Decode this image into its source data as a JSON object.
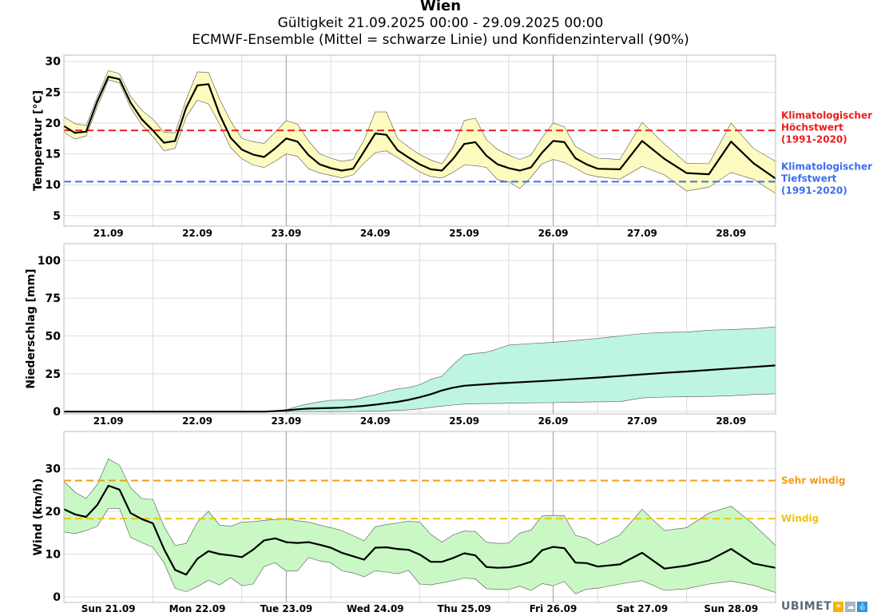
{
  "title": "Wien",
  "subtitle1": "Gültigkeit 21.09.2025 00:00 - 29.09.2025 00:00",
  "subtitle2": "ECMWF-Ensemble (Mittel = schwarze Linie) und Konfidenzintervall (90%)",
  "logo": {
    "text": "UBIMET",
    "icons": [
      "sun-icon",
      "cloud-icon",
      "drop-icon"
    ]
  },
  "colors": {
    "temp_band": "#fdfbbf",
    "precip_band": "#bdf5e2",
    "wind_band": "#c9f8c4",
    "tmax": "#ee1b1b",
    "tmin": "#3d6ef0",
    "sehr": "#f59a16",
    "windig": "#f1c411",
    "logo1": "#f3b200",
    "logo2": "#a7b6c4",
    "logo3": "#3a8fd6"
  },
  "chart_data": [
    {
      "type": "line",
      "name": "temperature",
      "ylabel": "Temperatur [°C]",
      "ylim": [
        3.3,
        31
      ],
      "yticks": [
        5,
        10,
        15,
        20,
        25,
        30
      ],
      "xlim": [
        0,
        8
      ],
      "xtick_labels": [
        "21.09",
        "22.09",
        "23.09",
        "24.09",
        "25.09",
        "26.09",
        "27.09",
        "28.09"
      ],
      "hourly_vgrid": [
        0,
        0.5,
        1,
        2,
        3,
        4,
        5,
        6,
        7,
        8
      ],
      "x": [
        0,
        0.125,
        0.25,
        0.375,
        0.5,
        0.625,
        0.75,
        0.875,
        1,
        1.125,
        1.25,
        1.375,
        1.5,
        1.625,
        1.75,
        1.875,
        2,
        2.125,
        2.25,
        2.375,
        2.5,
        2.625,
        2.75,
        2.875,
        3,
        3.125,
        3.25,
        3.375,
        3.5,
        3.625,
        3.75,
        3.875,
        4,
        4.125,
        4.25,
        4.375,
        4.5,
        4.625,
        4.75,
        4.875,
        5,
        5.125,
        5.25,
        5.375,
        5.5,
        5.625,
        5.75,
        5.875,
        6,
        6.25,
        6.5,
        6.75,
        7,
        7.25,
        7.5,
        7.75,
        8
      ],
      "mean": [
        19.5,
        18.4,
        18.6,
        23.5,
        27.5,
        27.1,
        23.3,
        20.6,
        18.8,
        16.8,
        17.1,
        22.5,
        26.1,
        26.3,
        21.4,
        17.6,
        15.7,
        14.9,
        14.5,
        15.9,
        17.5,
        17.0,
        14.8,
        13.3,
        12.7,
        12.3,
        12.6,
        15.4,
        18.3,
        18.1,
        15.6,
        14.4,
        13.3,
        12.5,
        12.3,
        14.2,
        16.6,
        16.9,
        14.7,
        13.3,
        12.7,
        12.3,
        12.8,
        15.2,
        17.1,
        16.9,
        14.3,
        13.3,
        12.6,
        12.5,
        17.1,
        14.2,
        11.9,
        11.7,
        17.0,
        13.5,
        11.0
      ],
      "upper": [
        21.0,
        19.9,
        19.6,
        24.2,
        28.5,
        28.0,
        24.3,
        22.1,
        20.6,
        18.5,
        18.4,
        23.8,
        28.3,
        28.2,
        23.9,
        20.3,
        17.5,
        17.0,
        16.7,
        18.5,
        20.4,
        19.8,
        17.1,
        15.0,
        14.3,
        13.8,
        14.1,
        17.3,
        21.8,
        21.8,
        17.5,
        16.1,
        14.9,
        14.0,
        13.4,
        16.0,
        20.4,
        20.8,
        17.3,
        15.7,
        14.8,
        14.1,
        14.8,
        17.6,
        20.0,
        19.4,
        16.2,
        15.2,
        14.3,
        14.1,
        20.1,
        16.6,
        13.5,
        13.4,
        20.0,
        15.9,
        13.8
      ],
      "lower": [
        18.5,
        17.4,
        17.9,
        22.6,
        27.0,
        26.5,
        22.5,
        19.7,
        17.8,
        15.5,
        15.9,
        21.0,
        23.7,
        23.1,
        19.8,
        16.0,
        14.2,
        13.2,
        12.8,
        13.8,
        15.0,
        14.6,
        12.6,
        11.9,
        11.5,
        11.1,
        11.6,
        13.5,
        15.2,
        15.5,
        14.4,
        13.2,
        12.1,
        11.3,
        11.1,
        12.0,
        13.2,
        13.1,
        12.8,
        10.8,
        10.5,
        9.4,
        11.2,
        13.4,
        14.1,
        13.6,
        12.7,
        11.7,
        11.3,
        10.9,
        13.0,
        11.6,
        9.0,
        9.6,
        12.0,
        10.9,
        8.6
      ],
      "reference_lines": [
        {
          "name": "Klimatologischer Höchstwert (1991-2020)",
          "value": 18.8,
          "color": "#ee1b1b",
          "label_lines": [
            "Klimatologischer",
            "Höchstwert",
            "(1991-2020)"
          ]
        },
        {
          "name": "Klimatologischer Tiefstwert (1991-2020)",
          "value": 10.5,
          "color": "#3d6ef0",
          "label_lines": [
            "Klimatologischer",
            "Tiefstwert",
            "(1991-2020)"
          ]
        }
      ]
    },
    {
      "type": "area",
      "name": "precipitation",
      "ylabel": "Niederschlag [mm]",
      "ylim": [
        -1.5,
        111
      ],
      "yticks": [
        0,
        25,
        50,
        75,
        100
      ],
      "xlim": [
        0,
        8
      ],
      "xtick_labels": [
        "21.09",
        "22.09",
        "23.09",
        "24.09",
        "25.09",
        "26.09",
        "27.09",
        "28.09"
      ],
      "hourly_vgrid": [
        1,
        2,
        3,
        4,
        5,
        6,
        7
      ],
      "x": [
        0,
        0.5,
        1,
        1.5,
        2,
        2.125,
        2.25,
        2.375,
        2.5,
        2.625,
        2.75,
        2.875,
        3,
        3.125,
        3.25,
        3.375,
        3.5,
        3.625,
        3.75,
        3.875,
        4,
        4.125,
        4.25,
        4.375,
        4.5,
        4.625,
        4.75,
        4.875,
        5,
        5.25,
        5.5,
        5.75,
        6,
        6.25,
        6.5,
        6.75,
        7,
        7.25,
        7.5,
        7.75,
        8
      ],
      "mean": [
        0,
        0,
        0,
        0,
        0,
        0,
        0,
        0.3,
        0.8,
        1.5,
        2.0,
        2.2,
        2.4,
        2.6,
        3.2,
        3.8,
        4.6,
        5.5,
        6.4,
        7.8,
        9.5,
        11.5,
        14.0,
        15.8,
        17.1,
        17.6,
        18.1,
        18.6,
        19.0,
        19.8,
        20.6,
        21.6,
        22.5,
        23.5,
        24.6,
        25.6,
        26.5,
        27.5,
        28.5,
        29.5,
        30.5
      ],
      "upper": [
        0,
        0,
        0,
        0,
        0,
        0,
        0,
        0.4,
        1.2,
        3.5,
        5.2,
        6.5,
        7.5,
        7.6,
        7.8,
        9.5,
        11.2,
        13.3,
        15.0,
        16.0,
        17.8,
        21.3,
        23.4,
        31.0,
        37.4,
        38.5,
        39.2,
        41.5,
        44.0,
        45.0,
        45.8,
        47.0,
        48.4,
        50.0,
        51.6,
        52.3,
        52.6,
        53.8,
        54.3,
        54.8,
        56.0
      ],
      "lower": [
        0,
        0,
        0,
        0,
        0,
        0,
        0,
        0,
        0,
        0,
        0,
        0,
        0,
        0,
        0.1,
        0.2,
        0.3,
        0.5,
        0.8,
        1.2,
        1.8,
        2.8,
        3.6,
        4.3,
        5.0,
        5.2,
        5.3,
        5.3,
        5.5,
        5.8,
        5.9,
        6.2,
        6.5,
        6.6,
        9.0,
        9.6,
        9.8,
        10.0,
        10.5,
        11.3,
        11.8
      ]
    },
    {
      "type": "line",
      "name": "wind",
      "ylabel": "Wind (km/h)",
      "ylim": [
        -1.3,
        38.7
      ],
      "yticks": [
        0,
        10,
        20,
        30
      ],
      "xlim": [
        0,
        8
      ],
      "xtick_labels": [
        "Sun 21.09",
        "Mon 22.09",
        "Tue 23.09",
        "Wed 24.09",
        "Thu 25.09",
        "Fri 26.09",
        "Sat 27.09",
        "Sun 28.09"
      ],
      "hourly_vgrid": [
        1,
        2,
        3,
        4,
        5,
        6,
        7
      ],
      "x": [
        0,
        0.125,
        0.25,
        0.375,
        0.5,
        0.625,
        0.75,
        0.875,
        1,
        1.125,
        1.25,
        1.375,
        1.5,
        1.625,
        1.75,
        1.875,
        2,
        2.125,
        2.25,
        2.375,
        2.5,
        2.625,
        2.75,
        2.875,
        3,
        3.125,
        3.25,
        3.375,
        3.5,
        3.625,
        3.75,
        3.875,
        4,
        4.125,
        4.25,
        4.375,
        4.5,
        4.625,
        4.75,
        4.875,
        5,
        5.125,
        5.25,
        5.375,
        5.5,
        5.625,
        5.75,
        5.875,
        6,
        6.25,
        6.5,
        6.75,
        7,
        7.25,
        7.5,
        7.75,
        8
      ],
      "mean": [
        20.5,
        19.3,
        18.7,
        21.5,
        26.0,
        25.1,
        19.6,
        18.2,
        17.2,
        11.2,
        6.3,
        5.2,
        8.9,
        10.7,
        10.0,
        9.7,
        9.3,
        11.0,
        13.2,
        13.7,
        12.8,
        12.6,
        12.8,
        12.2,
        11.5,
        10.3,
        9.5,
        8.7,
        11.5,
        11.6,
        11.2,
        11.0,
        9.9,
        8.2,
        8.2,
        9.1,
        10.2,
        9.7,
        7.0,
        6.8,
        6.9,
        7.4,
        8.2,
        10.9,
        11.7,
        11.4,
        8.0,
        7.9,
        7.1,
        7.6,
        10.3,
        6.6,
        7.3,
        8.5,
        11.2,
        7.8,
        6.8
      ],
      "upper": [
        27.0,
        24.5,
        23.0,
        26.3,
        32.3,
        30.8,
        25.5,
        23.0,
        22.8,
        16.5,
        12.0,
        12.5,
        17.5,
        20.0,
        16.8,
        16.5,
        17.5,
        17.6,
        17.9,
        18.1,
        18.2,
        17.8,
        17.5,
        16.8,
        16.2,
        15.5,
        14.3,
        13.1,
        16.4,
        16.9,
        17.3,
        17.7,
        17.5,
        14.6,
        12.8,
        14.5,
        15.4,
        15.3,
        12.8,
        12.5,
        12.6,
        14.9,
        15.6,
        18.9,
        19.1,
        19.0,
        14.4,
        13.7,
        12.1,
        14.5,
        20.5,
        15.5,
        16.2,
        19.6,
        21.2,
        17.0,
        12.0
      ],
      "lower": [
        15.2,
        14.8,
        15.5,
        16.5,
        20.7,
        20.7,
        13.9,
        12.7,
        11.6,
        8.0,
        2.0,
        1.2,
        2.4,
        3.9,
        2.8,
        4.5,
        2.6,
        3.0,
        7.1,
        8.0,
        6.0,
        6.1,
        9.2,
        8.4,
        8.0,
        6.1,
        5.6,
        4.7,
        6.1,
        5.8,
        5.4,
        6.2,
        3.0,
        2.8,
        3.3,
        3.8,
        4.4,
        4.2,
        1.9,
        1.8,
        1.7,
        2.5,
        1.5,
        3.1,
        2.6,
        3.6,
        0.7,
        1.8,
        2.0,
        3.0,
        3.8,
        1.5,
        1.9,
        3.0,
        3.7,
        2.7,
        1.0
      ],
      "reference_lines": [
        {
          "name": "Sehr windig",
          "value": 27.2,
          "color": "#f59a16",
          "label_lines": [
            "Sehr windig"
          ]
        },
        {
          "name": "Windig",
          "value": 18.3,
          "color": "#f1c411",
          "label_lines": [
            "Windig"
          ]
        }
      ]
    }
  ]
}
